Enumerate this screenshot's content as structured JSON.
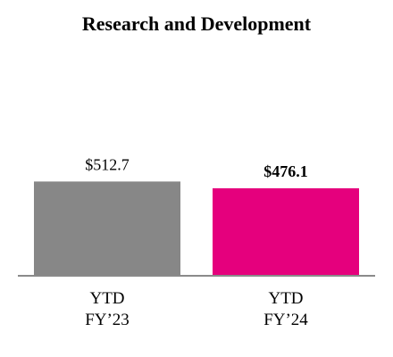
{
  "chart_data": {
    "type": "bar",
    "title": "Research and Development",
    "categories": [
      [
        "YTD",
        "FY’23"
      ],
      [
        "YTD",
        "FY’24"
      ]
    ],
    "values": [
      512.7,
      476.1
    ],
    "data_labels": [
      "$512.7",
      "$476.1"
    ],
    "bold_labels": [
      false,
      true
    ],
    "colors": [
      "#878787",
      "#e5007d"
    ],
    "baseline_color": "#8a8a8a",
    "ylim": [
      0,
      1500
    ],
    "grid": false,
    "legend": "none"
  }
}
